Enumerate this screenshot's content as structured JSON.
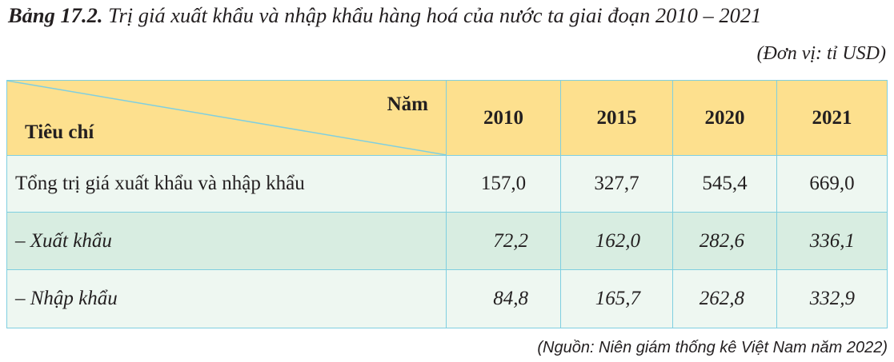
{
  "title": {
    "label": "Bảng 17.2.",
    "text": "Trị giá xuất khẩu và nhập khẩu hàng hoá của nước ta giai đoạn 2010 – 2021"
  },
  "unit": "(Đơn vị: tỉ USD)",
  "table": {
    "corner": {
      "top": "Năm",
      "bottom": "Tiêu chí"
    },
    "columns": [
      "2010",
      "2015",
      "2020",
      "2021"
    ],
    "rows": [
      [
        "Tổng trị giá xuất khẩu và nhập khẩu",
        "157,0",
        "327,7",
        "545,4",
        "669,0"
      ],
      [
        "– Xuất khẩu",
        "72,2",
        "162,0",
        "282,6",
        "336,1"
      ],
      [
        "– Nhập khẩu",
        "84,8",
        "165,7",
        "262,8",
        "332,9"
      ]
    ]
  },
  "source": "(Nguồn: Niên giám thống kê Việt Nam năm 2022)"
}
